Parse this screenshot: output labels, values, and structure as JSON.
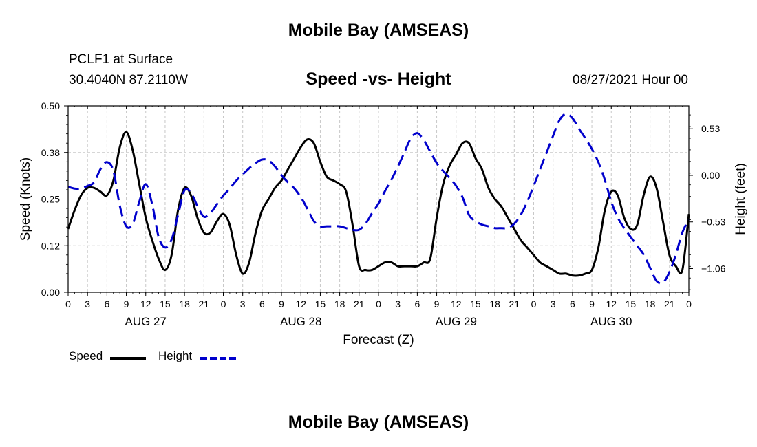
{
  "header": {
    "title": "Mobile Bay (AMSEAS)",
    "station": "PCLF1 at Surface",
    "coords": "30.4040N  87.2110W",
    "subtitle": "Speed -vs- Height",
    "datetime": "08/27/2021 Hour 00",
    "footer_title": "Mobile Bay (AMSEAS)"
  },
  "legend": {
    "speed_label": "Speed",
    "height_label": "Height",
    "speed_color": "#000000",
    "height_color": "#0000cc"
  },
  "chart_data": {
    "type": "line",
    "title": "Speed -vs- Height",
    "xlabel": "Forecast (Z)",
    "ylabel": "Speed (Knots)",
    "y2label": "Height (feet)",
    "x_range_hours": [
      0,
      96
    ],
    "x_tick_step_hours": 3,
    "x_tick_labels": [
      "0",
      "3",
      "6",
      "9",
      "12",
      "15",
      "18",
      "21",
      "0",
      "3",
      "6",
      "9",
      "12",
      "15",
      "18",
      "21",
      "0",
      "3",
      "6",
      "9",
      "12",
      "15",
      "18",
      "21",
      "0",
      "3",
      "6",
      "9",
      "12",
      "15",
      "18",
      "21",
      "0"
    ],
    "day_labels": [
      {
        "label": "AUG 27",
        "hour": 12
      },
      {
        "label": "AUG 28",
        "hour": 36
      },
      {
        "label": "AUG 29",
        "hour": 60
      },
      {
        "label": "AUG 30",
        "hour": 84
      }
    ],
    "ylim": [
      0,
      0.5
    ],
    "y_ticks": [
      {
        "value": 0.0,
        "label": "0.00"
      },
      {
        "value": 0.125,
        "label": "0.12"
      },
      {
        "value": 0.25,
        "label": "0.25"
      },
      {
        "value": 0.375,
        "label": "0.38"
      },
      {
        "value": 0.5,
        "label": "0.50"
      }
    ],
    "y2lim": [
      -1.33,
      0.79
    ],
    "y2_ticks": [
      {
        "value": 0.53,
        "label": "0.53"
      },
      {
        "value": 0.0,
        "label": "0.00"
      },
      {
        "value": -0.53,
        "label": "−0.53"
      },
      {
        "value": -1.06,
        "label": "−1.06"
      }
    ],
    "grid": true,
    "legend_position": "bottom-left",
    "series": [
      {
        "name": "Speed",
        "axis": "left",
        "color": "#000000",
        "dash": "solid",
        "points": [
          [
            0,
            0.17
          ],
          [
            1,
            0.22
          ],
          [
            2,
            0.26
          ],
          [
            3,
            0.28
          ],
          [
            4,
            0.28
          ],
          [
            5,
            0.27
          ],
          [
            6,
            0.26
          ],
          [
            7,
            0.3
          ],
          [
            8,
            0.39
          ],
          [
            9,
            0.43
          ],
          [
            10,
            0.38
          ],
          [
            11,
            0.29
          ],
          [
            12,
            0.2
          ],
          [
            13,
            0.14
          ],
          [
            14,
            0.09
          ],
          [
            15,
            0.06
          ],
          [
            16,
            0.1
          ],
          [
            17,
            0.22
          ],
          [
            18,
            0.28
          ],
          [
            19,
            0.26
          ],
          [
            20,
            0.2
          ],
          [
            21,
            0.16
          ],
          [
            22,
            0.16
          ],
          [
            23,
            0.19
          ],
          [
            24,
            0.21
          ],
          [
            25,
            0.18
          ],
          [
            26,
            0.1
          ],
          [
            27,
            0.05
          ],
          [
            28,
            0.08
          ],
          [
            29,
            0.16
          ],
          [
            30,
            0.22
          ],
          [
            31,
            0.25
          ],
          [
            32,
            0.28
          ],
          [
            33,
            0.3
          ],
          [
            34,
            0.33
          ],
          [
            35,
            0.36
          ],
          [
            36,
            0.39
          ],
          [
            37,
            0.41
          ],
          [
            38,
            0.4
          ],
          [
            39,
            0.35
          ],
          [
            40,
            0.31
          ],
          [
            41,
            0.3
          ],
          [
            42,
            0.29
          ],
          [
            43,
            0.27
          ],
          [
            44,
            0.18
          ],
          [
            45,
            0.07
          ],
          [
            46,
            0.06
          ],
          [
            47,
            0.06
          ],
          [
            48,
            0.07
          ],
          [
            49,
            0.08
          ],
          [
            50,
            0.08
          ],
          [
            51,
            0.07
          ],
          [
            52,
            0.07
          ],
          [
            53,
            0.07
          ],
          [
            54,
            0.07
          ],
          [
            55,
            0.08
          ],
          [
            56,
            0.09
          ],
          [
            57,
            0.2
          ],
          [
            58,
            0.29
          ],
          [
            59,
            0.34
          ],
          [
            60,
            0.37
          ],
          [
            61,
            0.4
          ],
          [
            62,
            0.4
          ],
          [
            63,
            0.36
          ],
          [
            64,
            0.33
          ],
          [
            65,
            0.28
          ],
          [
            66,
            0.25
          ],
          [
            67,
            0.23
          ],
          [
            68,
            0.2
          ],
          [
            69,
            0.17
          ],
          [
            70,
            0.14
          ],
          [
            71,
            0.12
          ],
          [
            72,
            0.1
          ],
          [
            73,
            0.08
          ],
          [
            74,
            0.07
          ],
          [
            75,
            0.06
          ],
          [
            76,
            0.05
          ],
          [
            77,
            0.05
          ],
          [
            78,
            0.045
          ],
          [
            79,
            0.045
          ],
          [
            80,
            0.05
          ],
          [
            81,
            0.06
          ],
          [
            82,
            0.12
          ],
          [
            83,
            0.22
          ],
          [
            84,
            0.27
          ],
          [
            85,
            0.26
          ],
          [
            86,
            0.2
          ],
          [
            87,
            0.17
          ],
          [
            88,
            0.18
          ],
          [
            89,
            0.26
          ],
          [
            90,
            0.31
          ],
          [
            91,
            0.28
          ],
          [
            92,
            0.19
          ],
          [
            93,
            0.1
          ],
          [
            94,
            0.07
          ],
          [
            95,
            0.06
          ],
          [
            96,
            0.21
          ]
        ]
      },
      {
        "name": "Height",
        "axis": "right",
        "color": "#0000cc",
        "dash": "dashed",
        "points": [
          [
            0,
            -0.13
          ],
          [
            1,
            -0.15
          ],
          [
            2,
            -0.15
          ],
          [
            3,
            -0.12
          ],
          [
            4,
            -0.08
          ],
          [
            5,
            0.07
          ],
          [
            6,
            0.15
          ],
          [
            7,
            0.05
          ],
          [
            8,
            -0.35
          ],
          [
            9,
            -0.58
          ],
          [
            10,
            -0.55
          ],
          [
            11,
            -0.3
          ],
          [
            12,
            -0.1
          ],
          [
            13,
            -0.33
          ],
          [
            14,
            -0.7
          ],
          [
            15,
            -0.82
          ],
          [
            16,
            -0.73
          ],
          [
            17,
            -0.45
          ],
          [
            18,
            -0.17
          ],
          [
            19,
            -0.2
          ],
          [
            20,
            -0.35
          ],
          [
            21,
            -0.47
          ],
          [
            22,
            -0.43
          ],
          [
            23,
            -0.33
          ],
          [
            24,
            -0.23
          ],
          [
            25,
            -0.15
          ],
          [
            26,
            -0.06
          ],
          [
            27,
            0.01
          ],
          [
            28,
            0.08
          ],
          [
            29,
            0.14
          ],
          [
            30,
            0.18
          ],
          [
            31,
            0.17
          ],
          [
            32,
            0.1
          ],
          [
            33,
            0.0
          ],
          [
            34,
            -0.08
          ],
          [
            35,
            -0.15
          ],
          [
            36,
            -0.25
          ],
          [
            37,
            -0.38
          ],
          [
            38,
            -0.52
          ],
          [
            39,
            -0.58
          ],
          [
            40,
            -0.58
          ],
          [
            41,
            -0.58
          ],
          [
            42,
            -0.58
          ],
          [
            43,
            -0.6
          ],
          [
            44,
            -0.62
          ],
          [
            45,
            -0.62
          ],
          [
            46,
            -0.55
          ],
          [
            47,
            -0.43
          ],
          [
            48,
            -0.32
          ],
          [
            49,
            -0.18
          ],
          [
            50,
            -0.05
          ],
          [
            51,
            0.1
          ],
          [
            52,
            0.26
          ],
          [
            53,
            0.42
          ],
          [
            54,
            0.48
          ],
          [
            55,
            0.4
          ],
          [
            56,
            0.27
          ],
          [
            57,
            0.14
          ],
          [
            58,
            0.05
          ],
          [
            59,
            -0.03
          ],
          [
            60,
            -0.12
          ],
          [
            61,
            -0.25
          ],
          [
            62,
            -0.45
          ],
          [
            63,
            -0.52
          ],
          [
            64,
            -0.56
          ],
          [
            65,
            -0.58
          ],
          [
            66,
            -0.6
          ],
          [
            67,
            -0.6
          ],
          [
            68,
            -0.6
          ],
          [
            69,
            -0.55
          ],
          [
            70,
            -0.45
          ],
          [
            71,
            -0.3
          ],
          [
            72,
            -0.12
          ],
          [
            73,
            0.07
          ],
          [
            74,
            0.26
          ],
          [
            75,
            0.45
          ],
          [
            76,
            0.63
          ],
          [
            77,
            0.7
          ],
          [
            78,
            0.65
          ],
          [
            79,
            0.53
          ],
          [
            80,
            0.42
          ],
          [
            81,
            0.3
          ],
          [
            82,
            0.15
          ],
          [
            83,
            -0.05
          ],
          [
            84,
            -0.3
          ],
          [
            85,
            -0.48
          ],
          [
            86,
            -0.6
          ],
          [
            87,
            -0.7
          ],
          [
            88,
            -0.8
          ],
          [
            89,
            -0.9
          ],
          [
            90,
            -1.05
          ],
          [
            91,
            -1.2
          ],
          [
            92,
            -1.22
          ],
          [
            93,
            -1.1
          ],
          [
            94,
            -0.9
          ],
          [
            95,
            -0.65
          ],
          [
            96,
            -0.5
          ]
        ]
      }
    ]
  }
}
